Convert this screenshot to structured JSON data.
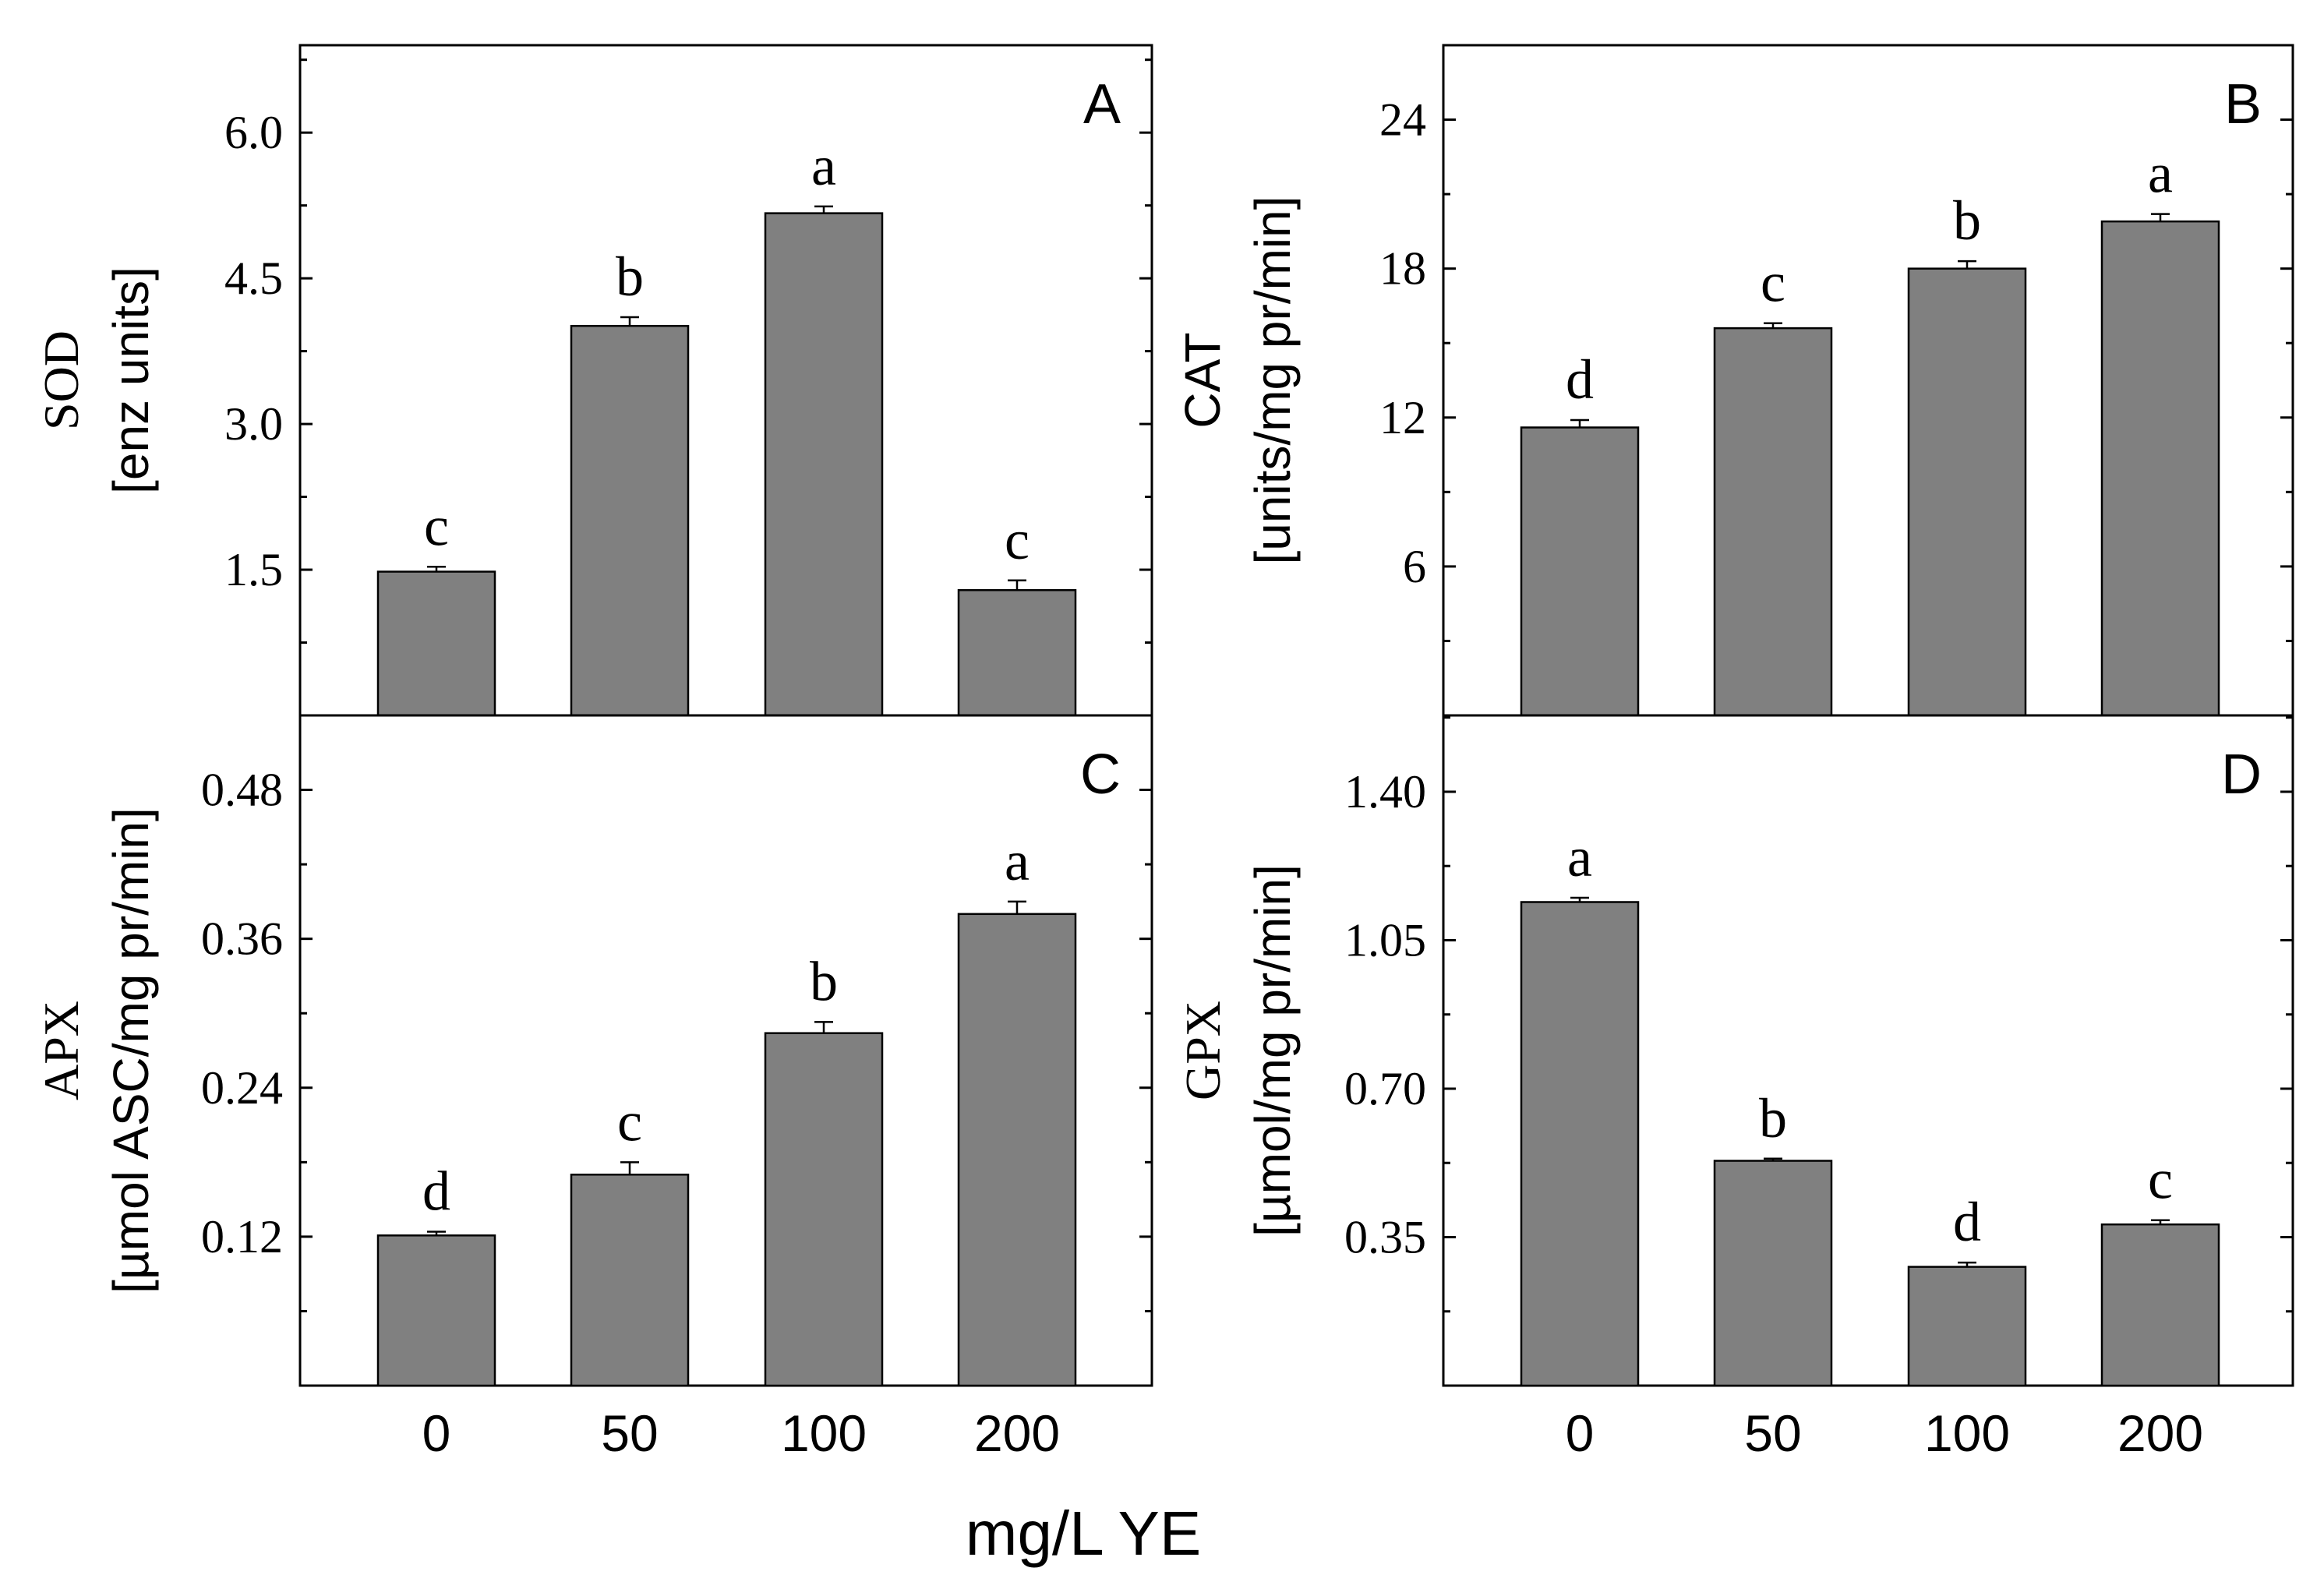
{
  "chart_data": [
    {
      "type": "bar",
      "panel": "A",
      "ylabel_line1": "SOD",
      "ylabel_line2": "[enz units]",
      "categories": [
        "0",
        "50",
        "100",
        "200"
      ],
      "values": [
        1.48,
        4.01,
        5.17,
        1.29
      ],
      "errors": [
        0.05,
        0.09,
        0.07,
        0.1
      ],
      "significance": [
        "c",
        "b",
        "a",
        "c"
      ],
      "yticks": [
        1.5,
        3.0,
        4.5,
        6.0
      ],
      "ytick_labels": [
        "1.5",
        "3.0",
        "4.5",
        "6.0"
      ],
      "ylim": [
        0,
        6.9
      ]
    },
    {
      "type": "bar",
      "panel": "B",
      "ylabel_line1": "CAT",
      "ylabel_line2": "[units/mg pr/min]",
      "categories": [
        "0",
        "50",
        "100",
        "200"
      ],
      "values": [
        11.6,
        15.6,
        18.0,
        19.9
      ],
      "errors": [
        0.3,
        0.2,
        0.3,
        0.3
      ],
      "significance": [
        "d",
        "c",
        "b",
        "a"
      ],
      "yticks": [
        6,
        12,
        18,
        24
      ],
      "ytick_labels": [
        "6",
        "12",
        "18",
        "24"
      ],
      "ylim": [
        0,
        27
      ]
    },
    {
      "type": "bar",
      "panel": "C",
      "ylabel_line1": "APX",
      "ylabel_line2": "[µmol ASC/mg pr/min]",
      "categories": [
        "0",
        "50",
        "100",
        "200"
      ],
      "values": [
        0.121,
        0.17,
        0.284,
        0.38
      ],
      "errors": [
        0.003,
        0.01,
        0.009,
        0.01
      ],
      "significance": [
        "d",
        "c",
        "b",
        "a"
      ],
      "yticks": [
        0.12,
        0.24,
        0.36,
        0.48
      ],
      "ytick_labels": [
        "0.12",
        "0.24",
        "0.36",
        "0.48"
      ],
      "ylim": [
        0,
        0.54
      ]
    },
    {
      "type": "bar",
      "panel": "D",
      "ylabel_line1": "GPX",
      "ylabel_line2": "[µmol/mg pr/min]",
      "categories": [
        "0",
        "50",
        "100",
        "200"
      ],
      "values": [
        1.14,
        0.53,
        0.28,
        0.38
      ],
      "errors": [
        0.01,
        0.005,
        0.01,
        0.01
      ],
      "significance": [
        "a",
        "b",
        "d",
        "c"
      ],
      "yticks": [
        0.35,
        0.7,
        1.05,
        1.4
      ],
      "ytick_labels": [
        "0.35",
        "0.70",
        "1.05",
        "1.40"
      ],
      "ylim": [
        0,
        1.58
      ]
    }
  ],
  "xlabel": "mg/L YE",
  "bar_color": "#808080"
}
